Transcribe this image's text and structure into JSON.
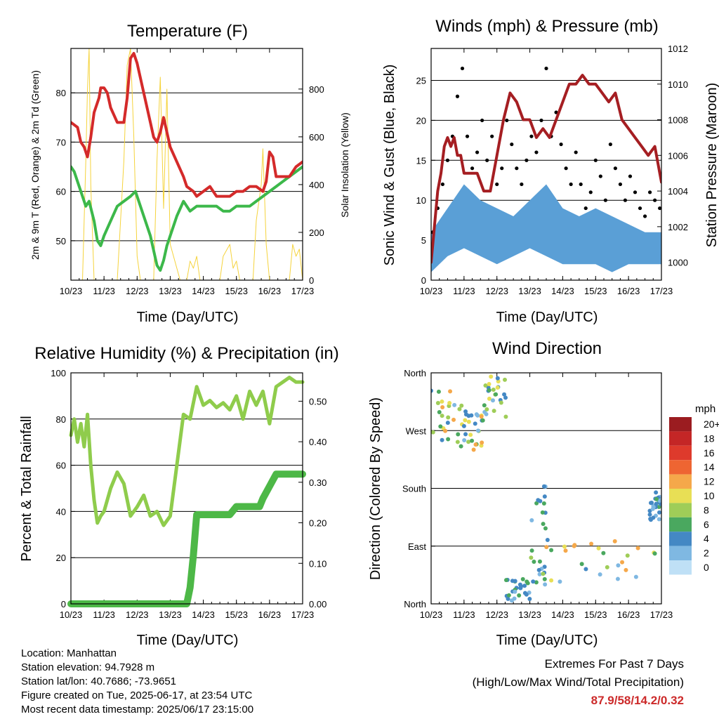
{
  "chart_data": [
    {
      "type": "line",
      "title": "Temperature (F)",
      "xlabel": "Time (Day/UTC)",
      "ylabel": "2m & 9m T (Red, Orange) & 2m Td (Green)",
      "y2label": "Solar Insolation (Yellow)",
      "x_ticks": [
        "10/23",
        "11/23",
        "12/23",
        "13/23",
        "14/23",
        "15/23",
        "16/23",
        "17/23"
      ],
      "xlim": [
        0,
        7
      ],
      "ylim": [
        42,
        89
      ],
      "y_ticks": [
        50,
        60,
        70,
        80
      ],
      "y2lim": [
        0,
        970
      ],
      "y2_ticks": [
        0,
        200,
        400,
        600,
        800
      ],
      "grid": true,
      "series": [
        {
          "axis": "left",
          "color": "#d42a2a",
          "x": [
            0,
            0.1,
            0.2,
            0.3,
            0.4,
            0.5,
            0.6,
            0.7,
            0.85,
            0.9,
            1.0,
            1.1,
            1.2,
            1.4,
            1.6,
            1.7,
            1.8,
            1.9,
            2.0,
            2.1,
            2.2,
            2.3,
            2.4,
            2.5,
            2.6,
            2.7,
            2.8,
            3.0,
            3.2,
            3.4,
            3.5,
            3.7,
            3.8,
            4.0,
            4.2,
            4.4,
            4.6,
            4.8,
            5.0,
            5.2,
            5.4,
            5.6,
            5.8,
            5.9,
            6.0,
            6.1,
            6.2,
            6.4,
            6.6,
            6.8,
            7.0
          ],
          "y": [
            74,
            73.5,
            73,
            70,
            69,
            67,
            71,
            76,
            79,
            81,
            81,
            80,
            77,
            74,
            74,
            79,
            87,
            88,
            86,
            83,
            80,
            77,
            74,
            71,
            70,
            72,
            75,
            69,
            66,
            63,
            61,
            60,
            59,
            60,
            61,
            59,
            59,
            59,
            60,
            60,
            61,
            61,
            60,
            62,
            68,
            67,
            63,
            63,
            63,
            65,
            66
          ]
        },
        {
          "axis": "left",
          "color": "#3cb84a",
          "x": [
            0,
            0.1,
            0.2,
            0.3,
            0.45,
            0.55,
            0.7,
            0.8,
            0.9,
            1.0,
            1.2,
            1.4,
            1.6,
            1.8,
            1.95,
            2.0,
            2.2,
            2.4,
            2.6,
            2.7,
            2.8,
            2.9,
            3.0,
            3.2,
            3.4,
            3.6,
            3.8,
            4.0,
            4.2,
            4.4,
            4.6,
            4.8,
            5.0,
            5.2,
            5.4,
            5.6,
            5.8,
            6.0,
            6.2,
            6.4,
            6.6,
            6.8,
            7.0
          ],
          "y": [
            65,
            64,
            62,
            60,
            57,
            58,
            54,
            50,
            49,
            51,
            54,
            57,
            58,
            59,
            60,
            59,
            55,
            51,
            45,
            44,
            46,
            49,
            51,
            55,
            58,
            56,
            57,
            57,
            57,
            57,
            56,
            56,
            57,
            57,
            57,
            58,
            59,
            60,
            61,
            62,
            63,
            64,
            65
          ]
        },
        {
          "axis": "right",
          "color": "#f5d33c",
          "x": [
            0,
            0.35,
            0.45,
            0.5,
            0.55,
            0.6,
            0.7,
            1.0,
            1.4,
            1.6,
            1.7,
            1.8,
            1.9,
            2.0,
            2.1,
            2.3,
            2.5,
            2.6,
            2.7,
            2.8,
            2.9,
            3.0,
            3.3,
            3.5,
            3.6,
            3.7,
            3.8,
            3.9,
            4.5,
            4.6,
            4.8,
            4.9,
            5.0,
            5.1,
            5.5,
            5.6,
            5.75,
            5.8,
            5.9,
            6.0,
            6.2,
            6.6,
            6.7,
            6.8,
            6.9,
            7.0
          ],
          "y": [
            0,
            0,
            500,
            800,
            970,
            400,
            0,
            0,
            0,
            500,
            900,
            970,
            600,
            100,
            0,
            0,
            0,
            500,
            850,
            300,
            800,
            150,
            0,
            0,
            80,
            50,
            100,
            0,
            0,
            100,
            150,
            50,
            80,
            0,
            0,
            250,
            400,
            550,
            150,
            0,
            0,
            0,
            150,
            100,
            130,
            0
          ]
        }
      ]
    },
    {
      "type": "scatter",
      "title": "Winds (mph) & Pressure (mb)",
      "xlabel": "Time (Day/UTC)",
      "ylabel": "Sonic Wind & Gust (Blue, Black)",
      "y2label": "Station Pressure (Maroon)",
      "x_ticks": [
        "10/23",
        "11/23",
        "12/23",
        "13/23",
        "14/23",
        "15/23",
        "16/23",
        "17/23"
      ],
      "xlim": [
        0,
        7
      ],
      "ylim": [
        0,
        29
      ],
      "y_ticks": [
        0,
        5,
        10,
        15,
        20,
        25
      ],
      "y2lim": [
        999,
        1012
      ],
      "y2_ticks": [
        1000,
        1002,
        1004,
        1006,
        1008,
        1010,
        1012
      ],
      "grid": true,
      "series": [
        {
          "axis": "right",
          "color": "#a51e22",
          "x": [
            0,
            0.1,
            0.2,
            0.3,
            0.4,
            0.5,
            0.6,
            0.7,
            0.8,
            0.9,
            1.0,
            1.2,
            1.4,
            1.6,
            1.8,
            2.0,
            2.2,
            2.4,
            2.6,
            2.8,
            3.0,
            3.2,
            3.4,
            3.6,
            3.8,
            4.0,
            4.2,
            4.4,
            4.6,
            4.8,
            5.0,
            5.2,
            5.4,
            5.6,
            5.8,
            6.0,
            6.2,
            6.4,
            6.6,
            6.8,
            7.0
          ],
          "y": [
            1000,
            1002,
            1004,
            1005,
            1006.5,
            1007,
            1006.5,
            1007,
            1006,
            1006,
            1005,
            1005,
            1005,
            1004,
            1004,
            1006,
            1008,
            1009.5,
            1009,
            1008,
            1008,
            1007,
            1007.5,
            1007,
            1008,
            1009,
            1010,
            1010,
            1010.5,
            1010,
            1010,
            1009.5,
            1009,
            1009.5,
            1008,
            1007.5,
            1007,
            1006.5,
            1006,
            1006.5,
            1004.5
          ]
        },
        {
          "axis": "left",
          "color": "#5a9fd6",
          "name": "",
          "x": [
            0,
            0.5,
            1.0,
            1.5,
            2.0,
            2.5,
            3.0,
            3.5,
            4.0,
            4.5,
            5.0,
            5.5,
            6.0,
            6.5,
            7.0
          ],
          "y_low": [
            1,
            3,
            4,
            3,
            2,
            3,
            4,
            3,
            2,
            2,
            2,
            1,
            2,
            2,
            2
          ],
          "y_high": [
            6,
            9,
            12,
            10,
            9,
            8,
            10,
            12,
            9,
            8,
            9,
            8,
            7,
            6,
            6
          ]
        },
        {
          "axis": "left",
          "color": "#000000",
          "x": [
            0.05,
            0.2,
            0.35,
            0.5,
            0.65,
            0.8,
            0.95,
            1.1,
            1.25,
            1.4,
            1.55,
            1.7,
            1.85,
            2.0,
            2.15,
            2.3,
            2.45,
            2.6,
            2.75,
            2.9,
            3.05,
            3.2,
            3.35,
            3.5,
            3.65,
            3.8,
            3.95,
            4.1,
            4.25,
            4.4,
            4.55,
            4.7,
            4.85,
            5.0,
            5.15,
            5.3,
            5.45,
            5.6,
            5.75,
            5.9,
            6.05,
            6.2,
            6.35,
            6.5,
            6.65,
            6.8,
            6.95
          ],
          "y": [
            6,
            9,
            12,
            15,
            18,
            23,
            26.5,
            18,
            14,
            16,
            20,
            15,
            18,
            12,
            14,
            20,
            17,
            14,
            12,
            15,
            18,
            16,
            20,
            26.5,
            18,
            21,
            17,
            14,
            12,
            16,
            12,
            9,
            11,
            15,
            13,
            10,
            17,
            14,
            12,
            10,
            13,
            11,
            9,
            8,
            11,
            10,
            9
          ]
        }
      ]
    },
    {
      "type": "line",
      "title": "Relative Humidity (%) & Precipitation (in)",
      "xlabel": "Time (Day/UTC)",
      "ylabel": "Percent & Total Rainfall",
      "x_ticks": [
        "10/23",
        "11/23",
        "12/23",
        "13/23",
        "14/23",
        "15/23",
        "16/23",
        "17/23"
      ],
      "xlim": [
        0,
        7
      ],
      "ylim": [
        0,
        100
      ],
      "y_ticks": [
        0,
        20,
        40,
        60,
        80,
        100
      ],
      "y2lim": [
        0,
        0.57
      ],
      "y2_ticks": [
        "0.00",
        "0.10",
        "0.20",
        "0.30",
        "0.40",
        "0.50"
      ],
      "grid": true,
      "series": [
        {
          "axis": "left",
          "color": "#8fcc4c",
          "x": [
            0,
            0.1,
            0.2,
            0.3,
            0.4,
            0.5,
            0.6,
            0.7,
            0.8,
            0.9,
            1.0,
            1.2,
            1.4,
            1.6,
            1.8,
            2.0,
            2.2,
            2.4,
            2.6,
            2.8,
            3.0,
            3.2,
            3.4,
            3.6,
            3.8,
            4.0,
            4.2,
            4.4,
            4.6,
            4.8,
            5.0,
            5.2,
            5.4,
            5.6,
            5.8,
            6.0,
            6.2,
            6.4,
            6.6,
            6.8,
            7.0
          ],
          "y": [
            73,
            80,
            70,
            78,
            68,
            82,
            60,
            45,
            35,
            38,
            40,
            50,
            57,
            52,
            38,
            42,
            47,
            38,
            40,
            34,
            38,
            60,
            82,
            80,
            94,
            86,
            88,
            85,
            87,
            84,
            90,
            80,
            92,
            86,
            92,
            78,
            94,
            96,
            98,
            96,
            96
          ]
        },
        {
          "axis": "right",
          "color": "#4db847",
          "x": [
            0,
            0.5,
            1.0,
            1.5,
            2.0,
            2.5,
            3.0,
            3.5,
            3.6,
            3.7,
            3.8,
            3.9,
            4.0,
            4.2,
            4.4,
            4.6,
            4.8,
            5.0,
            5.2,
            5.4,
            5.6,
            5.7,
            5.8,
            6.0,
            6.2,
            6.4,
            6.6,
            6.8,
            7.0
          ],
          "y": [
            0,
            0,
            0,
            0,
            0,
            0,
            0,
            0,
            0.04,
            0.12,
            0.22,
            0.22,
            0.22,
            0.22,
            0.22,
            0.22,
            0.22,
            0.24,
            0.24,
            0.24,
            0.24,
            0.24,
            0.26,
            0.29,
            0.32,
            0.32,
            0.32,
            0.32,
            0.32
          ]
        }
      ]
    },
    {
      "type": "scatter",
      "title": "Wind Direction",
      "xlabel": "Time (Day/UTC)",
      "ylabel": "Direction (Colored By Speed)",
      "x_ticks": [
        "10/23",
        "11/23",
        "12/23",
        "13/23",
        "14/23",
        "15/23",
        "16/23",
        "17/23"
      ],
      "xlim": [
        0,
        7
      ],
      "ylim": [
        0,
        360
      ],
      "y_tick_labels": [
        "North",
        "East",
        "South",
        "West",
        "North"
      ],
      "y_ticks": [
        0,
        90,
        180,
        270,
        360
      ],
      "grid": true,
      "legend": {
        "title": "mph",
        "placement": "right",
        "labels": [
          "20+",
          "18",
          "16",
          "14",
          "12",
          "10",
          "8",
          "6",
          "4",
          "2",
          "0"
        ],
        "colors": [
          "#9b1c20",
          "#c42626",
          "#de3a2c",
          "#ee6532",
          "#f5a84a",
          "#e8df55",
          "#9fcd58",
          "#4aa85f",
          "#4488c4",
          "#7fb8e2",
          "#bfe0f6"
        ]
      },
      "points_summary": [
        {
          "x": [
            0,
            1.0
          ],
          "y": [
            240,
            340
          ],
          "speed_range": [
            2,
            12
          ]
        },
        {
          "x": [
            1.0,
            1.6
          ],
          "y": [
            240,
            300
          ],
          "speed_range": [
            2,
            12
          ]
        },
        {
          "x": [
            1.6,
            2.3
          ],
          "y": [
            290,
            355
          ],
          "speed_range": [
            2,
            10
          ]
        },
        {
          "x": [
            2.2,
            3.0
          ],
          "y": [
            5,
            40
          ],
          "speed_range": [
            2,
            6
          ]
        },
        {
          "x": [
            3.0,
            3.5
          ],
          "y": [
            30,
            190
          ],
          "speed_range": [
            2,
            8
          ]
        },
        {
          "x": [
            3.5,
            6.9
          ],
          "y": [
            30,
            100
          ],
          "speed_range": [
            2,
            14
          ]
        },
        {
          "x": [
            6.6,
            7.0
          ],
          "y": [
            130,
            175
          ],
          "speed_range": [
            2,
            6
          ]
        }
      ]
    }
  ],
  "info": {
    "location": "Location: Manhattan",
    "elevation": "Station elevation: 94.7928 m",
    "latlon": "Station lat/lon: 40.7686; -73.9651",
    "created": "Figure created on Tue, 2025-06-17, at 23:54 UTC",
    "recent": "Most recent data timestamp: 2025/06/17 23:15:00"
  },
  "extremes": {
    "title": "Extremes For Past 7 Days",
    "subtitle": "(High/Low/Max Wind/Total Precipitation)",
    "values": "87.9/58/14.2/0.32"
  }
}
